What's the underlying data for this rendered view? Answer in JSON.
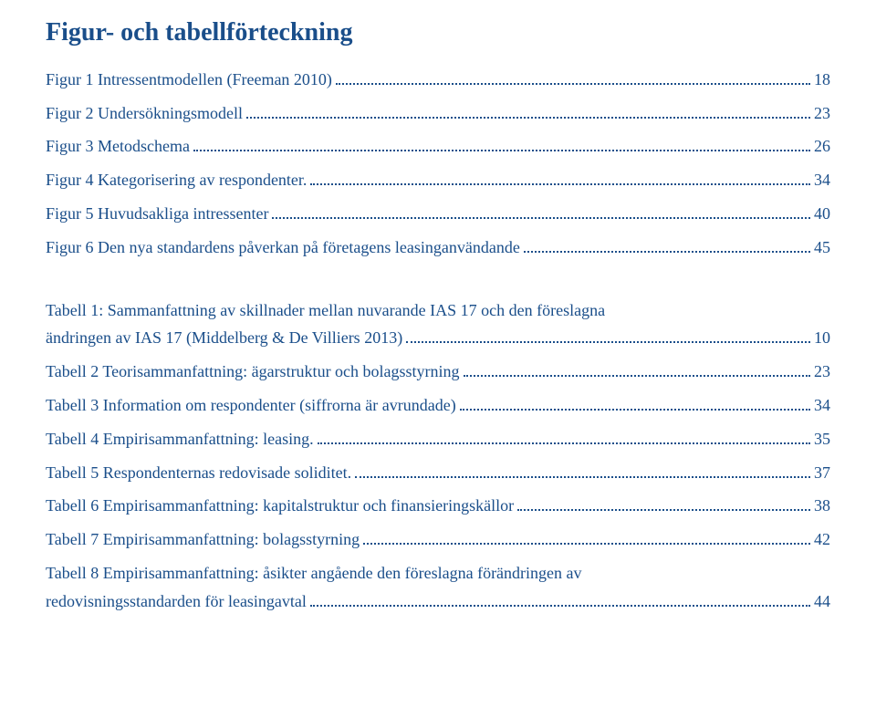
{
  "heading": "Figur- och tabellförteckning",
  "text_color": "#1a4e8a",
  "background_color": "#ffffff",
  "heading_fontsize": 28,
  "row_fontsize": 18,
  "figures": [
    {
      "label": "Figur 1 Intressentmodellen (Freeman 2010)",
      "page": "18"
    },
    {
      "label": "Figur 2 Undersökningsmodell",
      "page": "23"
    },
    {
      "label": "Figur 3 Metodschema",
      "page": "26"
    },
    {
      "label": "Figur 4 Kategorisering av respondenter.",
      "page": "34"
    },
    {
      "label": "Figur 5 Huvudsakliga intressenter",
      "page": "40"
    },
    {
      "label": "Figur 6 Den nya standardens påverkan på företagens leasinganvändande",
      "page": "45"
    }
  ],
  "tables": [
    {
      "label_line1": "Tabell 1: Sammanfattning av skillnader mellan nuvarande IAS 17 och den föreslagna",
      "label_line2": "ändringen av IAS 17 (Middelberg & De Villiers 2013)",
      "page": "10"
    },
    {
      "label_line1": "Tabell 2 Teorisammanfattning: ägarstruktur och bolagsstyrning",
      "page": "23"
    },
    {
      "label_line1": "Tabell 3 Information om respondenter (siffrorna är avrundade)",
      "page": "34"
    },
    {
      "label_line1": "Tabell 4 Empirisammanfattning: leasing.",
      "page": "35"
    },
    {
      "label_line1": "Tabell 5 Respondenternas redovisade soliditet.",
      "page": "37"
    },
    {
      "label_line1": "Tabell 6 Empirisammanfattning: kapitalstruktur och finansieringskällor",
      "page": "38"
    },
    {
      "label_line1": "Tabell 7 Empirisammanfattning: bolagsstyrning",
      "page": "42"
    },
    {
      "label_line1": "Tabell 8 Empirisammanfattning: åsikter angående den föreslagna förändringen av",
      "label_line2": "redovisningsstandarden för leasingavtal",
      "page": "44"
    }
  ]
}
